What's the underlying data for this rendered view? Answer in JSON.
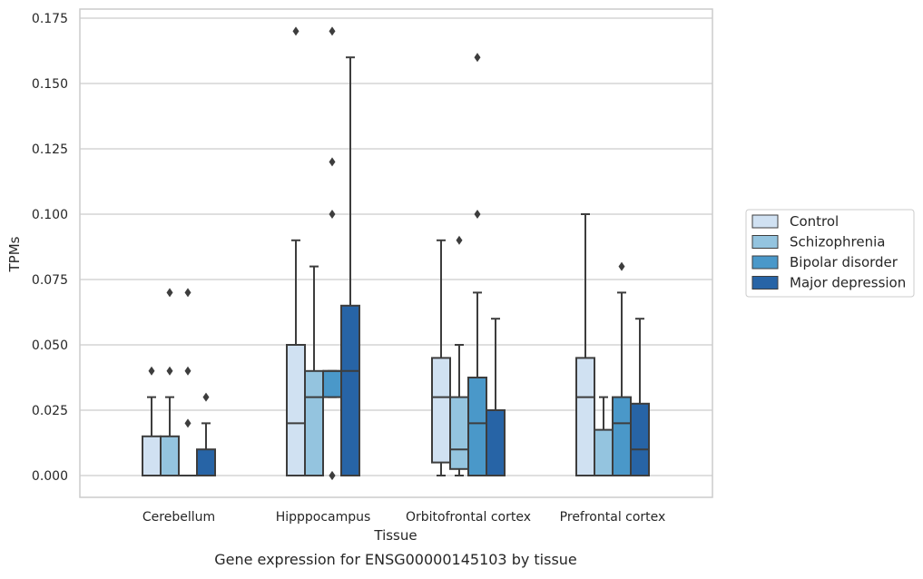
{
  "chart_data": {
    "type": "box",
    "xlabel": "Tissue",
    "ylabel": "TPMs",
    "caption": "Gene expression for ENSG00000145103 by tissue",
    "ylim": [
      -0.008,
      0.178
    ],
    "yticks": [
      "0.000",
      "0.025",
      "0.050",
      "0.075",
      "0.100",
      "0.125",
      "0.150",
      "0.175"
    ],
    "categories": [
      "Cerebellum",
      "Hipppocampus",
      "Orbitofrontal cortex",
      "Prefrontal cortex"
    ],
    "grid": true,
    "legend_position": "right",
    "series": [
      {
        "name": "Control",
        "color": "#d0e1f2",
        "boxes": [
          {
            "whisker_low": 0.0,
            "q1": 0.0,
            "median": 0.0,
            "q3": 0.015,
            "whisker_high": 0.03,
            "outliers": [
              0.04
            ]
          },
          {
            "whisker_low": 0.0,
            "q1": 0.0,
            "median": 0.02,
            "q3": 0.05,
            "whisker_high": 0.09,
            "outliers": [
              0.17
            ]
          },
          {
            "whisker_low": 0.0,
            "q1": 0.005,
            "median": 0.03,
            "q3": 0.045,
            "whisker_high": 0.09,
            "outliers": []
          },
          {
            "whisker_low": 0.0,
            "q1": 0.0,
            "median": 0.03,
            "q3": 0.045,
            "whisker_high": 0.1,
            "outliers": []
          }
        ]
      },
      {
        "name": "Schizophrenia",
        "color": "#94c4df",
        "boxes": [
          {
            "whisker_low": 0.0,
            "q1": 0.0,
            "median": 0.0,
            "q3": 0.015,
            "whisker_high": 0.03,
            "outliers": [
              0.04,
              0.07
            ]
          },
          {
            "whisker_low": 0.0,
            "q1": 0.0,
            "median": 0.03,
            "q3": 0.04,
            "whisker_high": 0.08,
            "outliers": []
          },
          {
            "whisker_low": 0.0,
            "q1": 0.0025,
            "median": 0.01,
            "q3": 0.03,
            "whisker_high": 0.05,
            "outliers": [
              0.09
            ]
          },
          {
            "whisker_low": 0.0,
            "q1": 0.0,
            "median": 0.0,
            "q3": 0.0175,
            "whisker_high": 0.03,
            "outliers": []
          }
        ]
      },
      {
        "name": "Bipolar disorder",
        "color": "#4a98c9",
        "boxes": [
          {
            "whisker_low": 0.0,
            "q1": 0.0,
            "median": 0.0,
            "q3": 0.0,
            "whisker_high": 0.0,
            "outliers": [
              0.02,
              0.04,
              0.07
            ]
          },
          {
            "whisker_low": 0.03,
            "q1": 0.03,
            "median": 0.04,
            "q3": 0.04,
            "whisker_high": 0.04,
            "outliers": [
              0.0,
              0.0,
              0.1,
              0.12,
              0.17
            ]
          },
          {
            "whisker_low": 0.0,
            "q1": 0.0,
            "median": 0.02,
            "q3": 0.0375,
            "whisker_high": 0.07,
            "outliers": [
              0.1,
              0.16
            ]
          },
          {
            "whisker_low": 0.0,
            "q1": 0.0,
            "median": 0.02,
            "q3": 0.03,
            "whisker_high": 0.07,
            "outliers": [
              0.08
            ]
          }
        ]
      },
      {
        "name": "Major depression",
        "color": "#2764a6",
        "boxes": [
          {
            "whisker_low": 0.0,
            "q1": 0.0,
            "median": 0.0,
            "q3": 0.01,
            "whisker_high": 0.02,
            "outliers": [
              0.03
            ]
          },
          {
            "whisker_low": 0.0,
            "q1": 0.0,
            "median": 0.04,
            "q3": 0.065,
            "whisker_high": 0.16,
            "outliers": []
          },
          {
            "whisker_low": 0.0,
            "q1": 0.0,
            "median": 0.0,
            "q3": 0.025,
            "whisker_high": 0.06,
            "outliers": []
          },
          {
            "whisker_low": 0.0,
            "q1": 0.0,
            "median": 0.01,
            "q3": 0.0275,
            "whisker_high": 0.06,
            "outliers": []
          }
        ]
      }
    ]
  }
}
